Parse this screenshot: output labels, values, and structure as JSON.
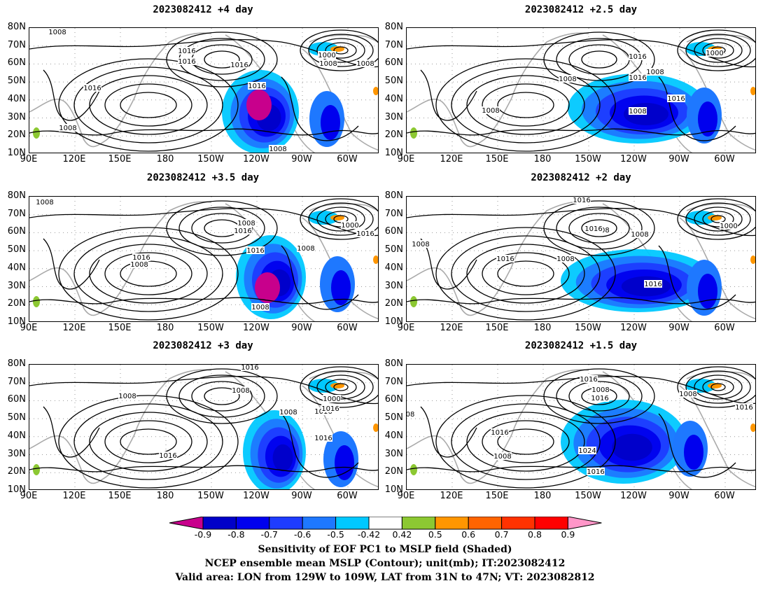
{
  "panels": [
    {
      "title": "2023082412 +4 day"
    },
    {
      "title": "2023082412 +2.5 day"
    },
    {
      "title": "2023082412 +3.5 day"
    },
    {
      "title": "2023082412 +2 day"
    },
    {
      "title": "2023082412 +3 day"
    },
    {
      "title": "2023082412 +1.5 day"
    }
  ],
  "axes": {
    "lat_labels": [
      "80N",
      "70N",
      "60N",
      "50N",
      "40N",
      "30N",
      "20N",
      "10N"
    ],
    "lon_labels": [
      "90E",
      "120E",
      "150E",
      "180",
      "150W",
      "120W",
      "90W",
      "60W"
    ]
  },
  "contour_labels": [
    [
      "1008",
      "1008",
      "1016",
      "1016",
      "1016",
      "1016",
      "1016",
      "1000",
      "1008",
      "1008",
      "1008"
    ],
    [
      "1008",
      "1016",
      "1008",
      "1016",
      "1008",
      "1000",
      "1016",
      "1008"
    ],
    [
      "1008",
      "1016",
      "1008",
      "1016",
      "1008",
      "1016",
      "1008",
      "1000",
      "1016",
      "1008"
    ],
    [
      "1016",
      "1008",
      "1016",
      "1008",
      "1000",
      "1008",
      "1008",
      "1016",
      "1016"
    ],
    [
      "1016",
      "1008",
      "1008",
      "1016",
      "1016",
      "1008",
      "1016",
      "1000",
      "1016"
    ],
    [
      "1016",
      "1008",
      "1016",
      "1016",
      "1008",
      "1024",
      "1016",
      "1008",
      "1016",
      "08"
    ]
  ],
  "colorbar": {
    "levels": [
      "-0.9",
      "-0.8",
      "-0.7",
      "-0.6",
      "-0.5",
      "-0.42",
      "0.42",
      "0.5",
      "0.6",
      "0.7",
      "0.8",
      "0.9"
    ],
    "colors": [
      "#c8008c",
      "#0000c8",
      "#0000ee",
      "#1e3cff",
      "#1e78ff",
      "#00c8ff",
      "#ffffff",
      "#8cc832",
      "#ff9600",
      "#ff6400",
      "#ff3200",
      "#ff0000",
      "#ff96c8"
    ]
  },
  "caption": {
    "line1": "Sensitivity of EOF PC1 to MSLP field (Shaded)",
    "line2": "NCEP ensemble mean MSLP (Contour); unit(mb); IT:2023082412",
    "line3": "Valid area: LON from 129W to 109W, LAT from 31N to 47N; VT: 2023082812"
  }
}
